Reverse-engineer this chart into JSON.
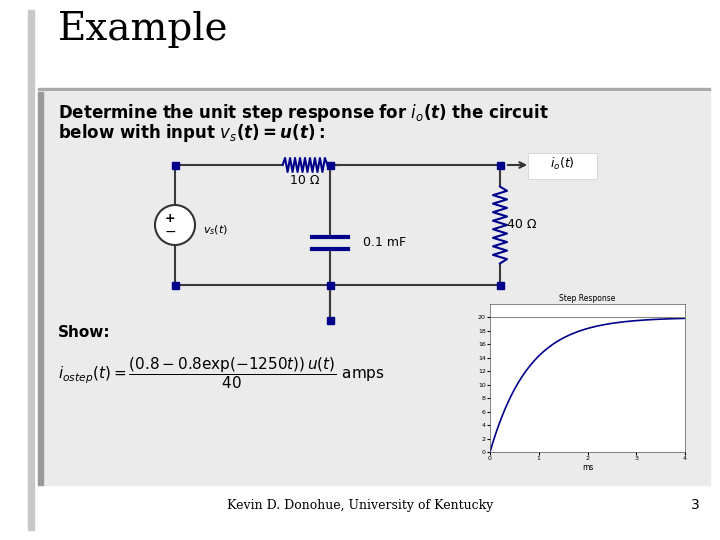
{
  "title": "Example",
  "bg_color": "#ffffff",
  "outer_bg": "#f0f0f0",
  "left_bar_color": "#b0b0b0",
  "content_bg": "#e8e8e8",
  "content_left_bar": "#999999",
  "title_color": "#000000",
  "title_fontsize": 28,
  "desc_fontsize": 12,
  "footer_text": "Kevin D. Donohue, University of Kentucky",
  "page_number": "3",
  "node_color": "#00008B",
  "wire_color": "#3a3a3a",
  "component_color": "#00008B",
  "plot_line_color": "#00008B",
  "resistor1_label": "10 Ω",
  "cap_label": "0.1 mF",
  "resistor2_label": "40 Ω",
  "show_label": "Show:",
  "separator_color": "#aaaaaa"
}
